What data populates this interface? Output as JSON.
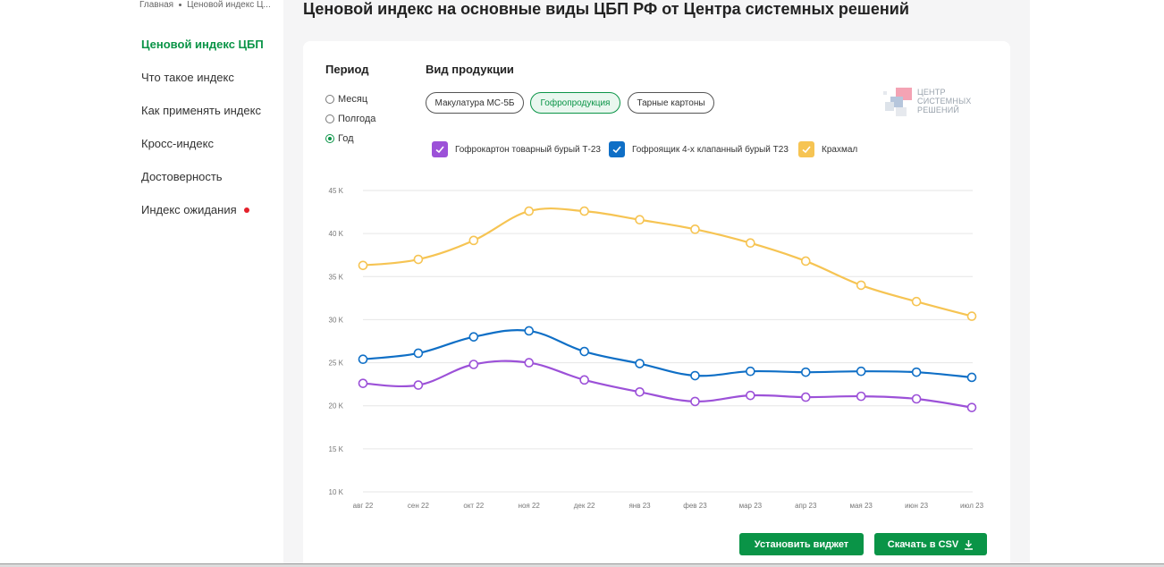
{
  "breadcrumb": {
    "home": "Главная",
    "current": "Ценовой индекс Ц..."
  },
  "nav": {
    "items": [
      {
        "label": "Ценовой индекс ЦБП",
        "active": true
      },
      {
        "label": "Что такое индекс"
      },
      {
        "label": "Как применять индекс"
      },
      {
        "label": "Кросс-индекс"
      },
      {
        "label": "Достоверность"
      },
      {
        "label": "Индекс ожидания",
        "badge": "red-dot"
      }
    ]
  },
  "page_title": "Ценовой индекс на основные виды ЦБП РФ от Центра системных решений",
  "filters": {
    "period_label": "Период",
    "period_options": [
      "Месяц",
      "Полгода",
      "Год"
    ],
    "period_selected": "Год",
    "product_label": "Вид продукции",
    "products": [
      "Макулатура МС-5Б",
      "Гофропродукция",
      "Тарные картоны"
    ],
    "product_selected": "Гофропродукция"
  },
  "logo": {
    "line1": "ЦЕНТР",
    "line2": "СИСТЕМНЫХ",
    "line3": "РЕШЕНИЙ"
  },
  "buttons": {
    "widget": "Установить виджет",
    "csv": "Скачать в CSV"
  },
  "colors": {
    "accent": "#0a9447",
    "purple": "#9c51d8",
    "blue": "#0f6fc6",
    "yellow": "#f6c453"
  },
  "chart_data": {
    "type": "line",
    "x": [
      "авг 22",
      "сен 22",
      "окт 22",
      "ноя 22",
      "дек 22",
      "янв 23",
      "фев 23",
      "мар 23",
      "апр 23",
      "мая 23",
      "июн 23",
      "июл 23"
    ],
    "ylim": [
      10000,
      45000
    ],
    "yticks": [
      {
        "value": 10000,
        "label": "10 K"
      },
      {
        "value": 15000,
        "label": "15 K"
      },
      {
        "value": 20000,
        "label": "20 K"
      },
      {
        "value": 25000,
        "label": "25 K"
      },
      {
        "value": 30000,
        "label": "30 K"
      },
      {
        "value": 35000,
        "label": "35 K"
      },
      {
        "value": 40000,
        "label": "40 K"
      },
      {
        "value": 45000,
        "label": "45 K"
      }
    ],
    "grid": true,
    "legend_position": "top",
    "series": [
      {
        "name": "Гофрокартон товарный бурый Т-23",
        "color": "#9c51d8",
        "values": [
          22600,
          22400,
          24800,
          25000,
          23000,
          21600,
          20500,
          21200,
          21000,
          21100,
          20800,
          19800
        ]
      },
      {
        "name": "Гофроящик 4-х клапанный бурый Т23",
        "color": "#0f6fc6",
        "values": [
          25400,
          26100,
          28000,
          28700,
          26300,
          24900,
          23500,
          24000,
          23900,
          24000,
          23900,
          23300
        ]
      },
      {
        "name": "Крахмал",
        "color": "#f6c453",
        "values": [
          36300,
          37000,
          39200,
          42600,
          42600,
          41600,
          40500,
          38900,
          36800,
          34000,
          32100,
          30400
        ]
      }
    ]
  }
}
